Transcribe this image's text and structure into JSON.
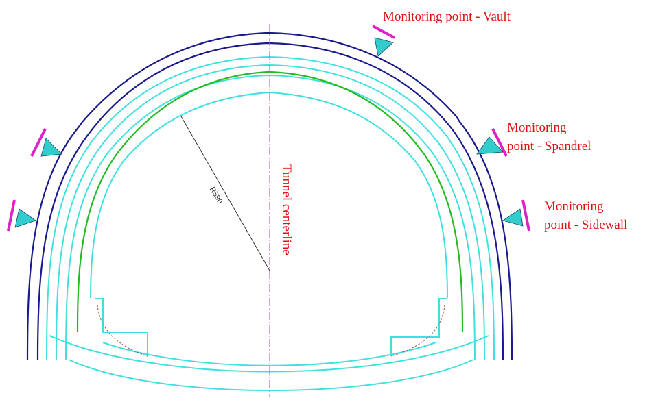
{
  "labels": {
    "vault": "Monitoring point - Vault",
    "spandrel_line1": "Monitoring",
    "spandrel_line2": "point - Spandrel",
    "sidewall_line1": "Monitoring",
    "sidewall_line2": "point - Sidewall",
    "centerline": "Tunnel centerline",
    "radius": "R590"
  },
  "colors": {
    "label_text": "#e01010",
    "outer_lining": "#1a1a8c",
    "inner_lining": "#40e0e0",
    "primary_support": "#22bb22",
    "marker_triangle": "#33cccc",
    "marker_bar": "#e020c8",
    "centerline": "#b070c0",
    "radius_line": "#222222",
    "ditch_dashes": "#a05050"
  }
}
